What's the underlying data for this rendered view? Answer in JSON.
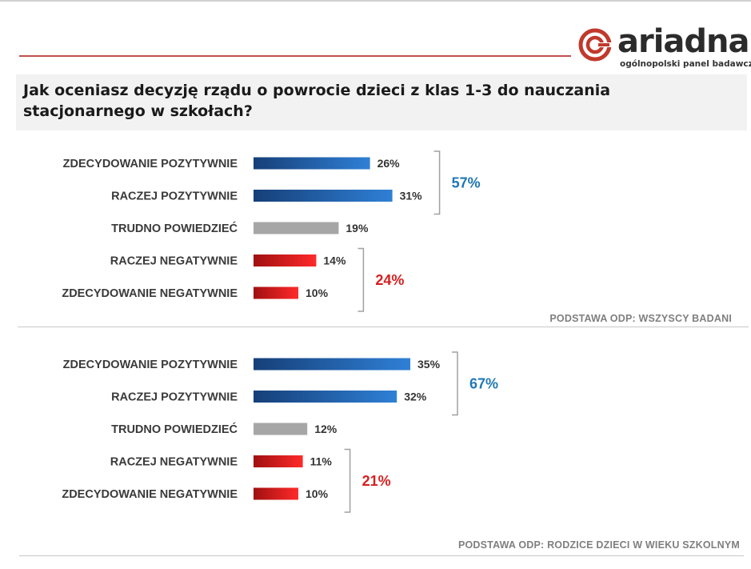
{
  "logo": {
    "wordmark": "ariadna",
    "tagline": "ogólnopolski panel badawczy"
  },
  "question": "Jak oceniasz decyzję rządu o powrocie dzieci z klas 1-3 do nauczania stacjonarnego w szkołach?",
  "colors": {
    "positive": "#1f5fa8",
    "neutral": "#a6a6a6",
    "negative": "#e01b1b",
    "positive_total": "#1f77b4",
    "negative_total": "#d62020",
    "bracket": "#a0a0a0"
  },
  "chart_data": [
    {
      "type": "bar",
      "orientation": "horizontal",
      "title": "",
      "categories": [
        "ZDECYDOWANIE  POZYTYWNIE",
        "RACZEJ POZYTYWNIE",
        "TRUDNO POWIEDZIEĆ",
        "RACZEJ NEGATYWNIE",
        "ZDECYDOWANIE  NEGATYWNIE"
      ],
      "values": [
        26,
        31,
        19,
        14,
        10
      ],
      "value_labels": [
        "26%",
        "31%",
        "19%",
        "14%",
        "10%"
      ],
      "groups": [
        {
          "label": "57%",
          "from": 0,
          "to": 1,
          "kind": "positive"
        },
        {
          "label": "24%",
          "from": 3,
          "to": 4,
          "kind": "negative"
        }
      ],
      "base_note": "PODSTAWA ODP: WSZYSCY BADANI"
    },
    {
      "type": "bar",
      "orientation": "horizontal",
      "title": "",
      "categories": [
        "ZDECYDOWANIE  POZYTYWNIE",
        "RACZEJ POZYTYWNIE",
        "TRUDNO POWIEDZIEĆ",
        "RACZEJ NEGATYWNIE",
        "ZDECYDOWANIE  NEGATYWNIE"
      ],
      "values": [
        35,
        32,
        12,
        11,
        10
      ],
      "value_labels": [
        "35%",
        "32%",
        "12%",
        "11%",
        "10%"
      ],
      "groups": [
        {
          "label": "67%",
          "from": 0,
          "to": 1,
          "kind": "positive"
        },
        {
          "label": "21%",
          "from": 3,
          "to": 4,
          "kind": "negative"
        }
      ],
      "base_note": "PODSTAWA ODP: RODZICE DZIECI W WIEKU SZKOLNYM"
    }
  ]
}
